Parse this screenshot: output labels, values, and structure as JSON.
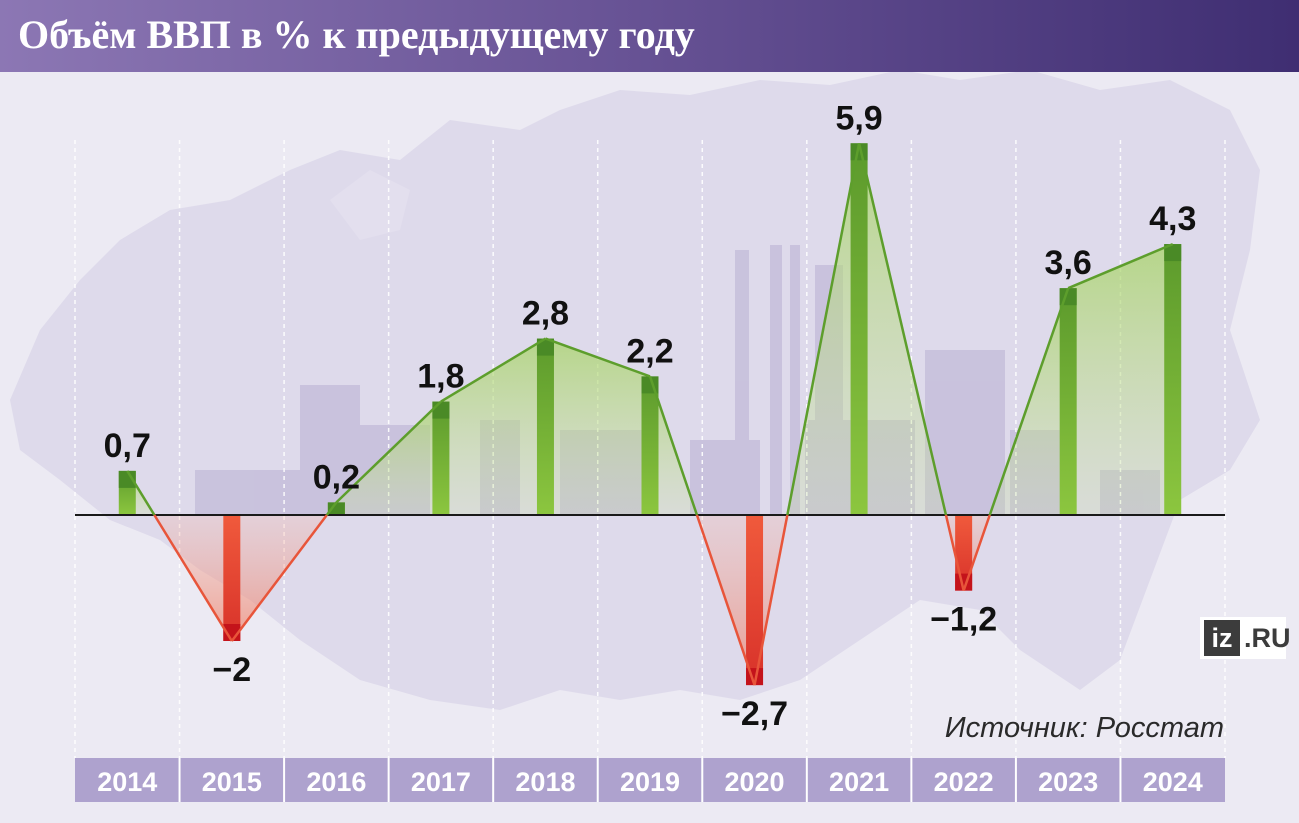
{
  "header": {
    "title": "Объём ВВП в % к предыдущему году"
  },
  "footer": {
    "source": "Источник: Росстат"
  },
  "logo": {
    "mark": "iz",
    "domain": ".RU"
  },
  "colors": {
    "header_start": "#8c77b4",
    "header_end": "#3f2e72",
    "positive": "#6eab3a",
    "positive_cap": "#4a8a26",
    "negative": "#e8553a",
    "negative_cap": "#c4131b",
    "year_bar": "#aea2ce",
    "background": "#eceaf3"
  },
  "chart_data": {
    "type": "bar",
    "title": "Объём ВВП в % к предыдущему году",
    "xlabel": "",
    "ylabel": "",
    "categories": [
      "2014",
      "2015",
      "2016",
      "2017",
      "2018",
      "2019",
      "2020",
      "2021",
      "2022",
      "2023",
      "2024"
    ],
    "values": [
      0.7,
      -2,
      0.2,
      1.8,
      2.8,
      2.2,
      -2.7,
      5.9,
      -1.2,
      3.6,
      4.3
    ],
    "value_labels": [
      "0,7",
      "−2",
      "0,2",
      "1,8",
      "2,8",
      "2,2",
      "−2,7",
      "5,9",
      "−1,2",
      "3,6",
      "4,3"
    ],
    "ylim": [
      -3,
      6.5
    ],
    "grid": true,
    "connecting_line": true,
    "source": "Источник: Росстат"
  }
}
